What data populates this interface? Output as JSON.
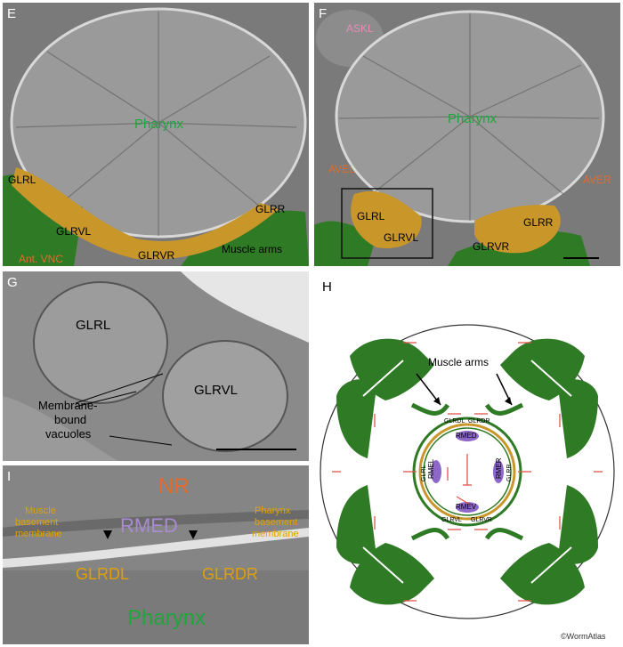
{
  "panels": {
    "E": {
      "letter": "E",
      "labels": {
        "pharynx": "Pharynx",
        "glrl": "GLRL",
        "glrvl": "GLRVL",
        "glrvr": "GLRVR",
        "glrr": "GLRR",
        "muscle_arms": "Muscle arms",
        "ant_vnc": "Ant. VNC"
      }
    },
    "F": {
      "letter": "F",
      "labels": {
        "askl": "ASKL",
        "pharynx": "Pharynx",
        "avel": "AVEL",
        "aver": "AVER",
        "glrl": "GLRL",
        "glrvl": "GLRVL",
        "glrr": "GLRR",
        "glrvr": "GLRVR"
      }
    },
    "G": {
      "letter": "G",
      "labels": {
        "glrl": "GLRL",
        "glrvl": "GLRVL",
        "vacuoles_1": "Membrane-",
        "vacuoles_2": "bound",
        "vacuoles_3": "vacuoles"
      }
    },
    "H": {
      "letter": "H",
      "labels": {
        "muscle_arms": "Muscle arms",
        "rmed": "RMED",
        "rmev": "RMEV",
        "rmel": "RMEL",
        "rmer": "RMER",
        "glrdl": "GLRDL",
        "glrdr": "GLRDR",
        "glrl": "GLRL",
        "glrr": "GLRR",
        "glrvl": "GLRVL",
        "glrvr": "GLRVR"
      }
    },
    "I": {
      "letter": "I",
      "labels": {
        "nr": "NR",
        "rmed": "RMED",
        "muscle_bm_1": "Muscle",
        "muscle_bm_2": "basement",
        "muscle_bm_3": "membrane",
        "pharynx_bm_1": "Pharynx",
        "pharynx_bm_2": "basement",
        "pharynx_bm_3": "membrane",
        "glrdl": "GLRDL",
        "glrdr": "GLRDR",
        "pharynx": "Pharynx"
      }
    }
  },
  "credit": "©WormAtlas",
  "colors": {
    "em_gray": "#6e6e6e",
    "muscle_green": "#2f7a24",
    "glr_gold": "#c9962a",
    "label_green": "#1ea63a",
    "label_orange": "#e36b2c",
    "label_purple": "#a88bd0",
    "rme_purple": "#8d68c8",
    "gap_junction_red": "#e0544a"
  }
}
